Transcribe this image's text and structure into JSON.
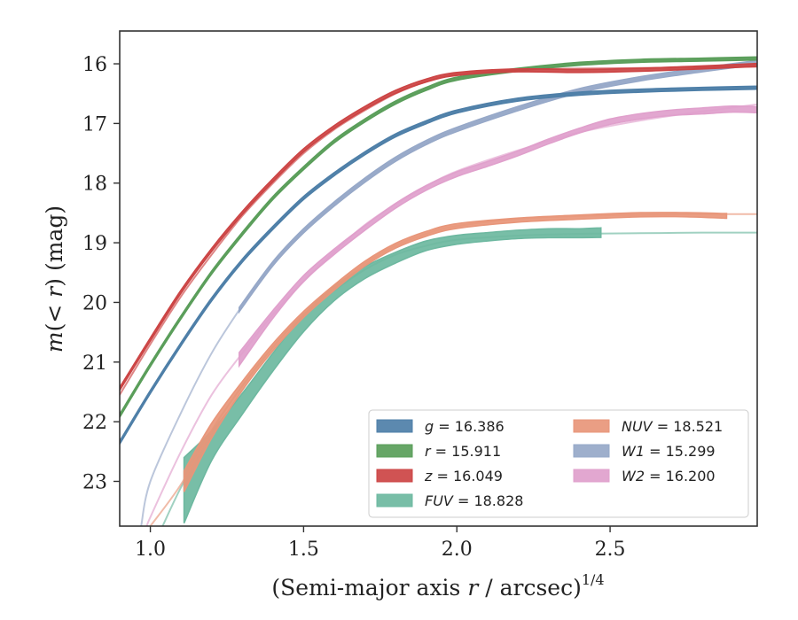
{
  "chart_data": {
    "type": "line",
    "xlabel": "(Semi-major axis r / arcsec)",
    "xlabel_parts": {
      "pre": "(Semi-major axis ",
      "var": "r",
      "post": " / arcsec)",
      "sup": "1/4"
    },
    "ylabel": "m(< r) (mag)",
    "ylabel_parts": {
      "var": "m",
      "open": "(",
      "lt": "< ",
      "r": "r",
      "close": ") (mag)"
    },
    "xlim": [
      0.9,
      2.98
    ],
    "ylim": [
      23.75,
      15.45
    ],
    "y_inverted": true,
    "grid": false,
    "xticks": [
      1.0,
      1.5,
      2.0,
      2.5
    ],
    "xtick_labels": [
      "1.0",
      "1.5",
      "2.0",
      "2.5"
    ],
    "yticks": [
      16,
      17,
      18,
      19,
      20,
      21,
      22,
      23
    ],
    "ytick_labels": [
      "16",
      "17",
      "18",
      "19",
      "20",
      "21",
      "22",
      "23"
    ],
    "legend_position": "lower-right",
    "series": [
      {
        "key": "g",
        "name": "g = 16.386",
        "var": "g",
        "value": "16.386",
        "color": "#4e7fa8",
        "model": {
          "x": [
            0.9,
            1.0,
            1.1,
            1.2,
            1.3,
            1.4,
            1.5,
            1.6,
            1.7,
            1.8,
            1.9,
            2.0,
            2.2,
            2.4,
            2.6,
            2.8,
            2.98
          ],
          "y": [
            22.35,
            21.5,
            20.7,
            19.95,
            19.3,
            18.75,
            18.25,
            17.85,
            17.5,
            17.2,
            16.98,
            16.8,
            16.6,
            16.5,
            16.45,
            16.42,
            16.4
          ]
        },
        "band": {
          "x": [
            0.9,
            1.0,
            1.1,
            1.2,
            1.3,
            1.4,
            1.5,
            1.6,
            1.7,
            1.8,
            1.9,
            2.0,
            2.2,
            2.4,
            2.6,
            2.8,
            2.98
          ],
          "y": [
            22.35,
            21.5,
            20.7,
            19.95,
            19.3,
            18.75,
            18.25,
            17.85,
            17.5,
            17.2,
            16.98,
            16.8,
            16.6,
            16.5,
            16.45,
            16.42,
            16.4
          ],
          "width": 0.05
        }
      },
      {
        "key": "r",
        "name": "r = 15.911",
        "var": "r",
        "value": "15.911",
        "color": "#5a9e5a",
        "model": {
          "x": [
            0.9,
            1.0,
            1.1,
            1.2,
            1.3,
            1.4,
            1.5,
            1.6,
            1.7,
            1.8,
            1.9,
            2.0,
            2.2,
            2.4,
            2.6,
            2.8,
            2.98
          ],
          "y": [
            21.9,
            21.05,
            20.25,
            19.5,
            18.85,
            18.25,
            17.75,
            17.3,
            16.95,
            16.65,
            16.42,
            16.25,
            16.1,
            16.0,
            15.95,
            15.93,
            15.91
          ]
        },
        "band": {
          "x": [
            0.9,
            1.0,
            1.1,
            1.2,
            1.3,
            1.4,
            1.5,
            1.6,
            1.7,
            1.8,
            1.9,
            2.0,
            2.2,
            2.4,
            2.6,
            2.8,
            2.98
          ],
          "y": [
            21.9,
            21.05,
            20.25,
            19.5,
            18.85,
            18.25,
            17.75,
            17.3,
            16.95,
            16.65,
            16.42,
            16.25,
            16.1,
            16.0,
            15.95,
            15.93,
            15.91
          ],
          "width": 0.05
        }
      },
      {
        "key": "z",
        "name": "z = 16.049",
        "var": "z",
        "value": "16.049",
        "color": "#cc4444",
        "model": {
          "x": [
            0.9,
            1.0,
            1.1,
            1.2,
            1.3,
            1.4,
            1.5,
            1.6,
            1.7,
            1.8,
            1.9,
            2.0,
            2.2,
            2.4,
            2.6,
            2.8,
            2.98
          ],
          "y": [
            21.55,
            20.7,
            19.9,
            19.2,
            18.55,
            18.0,
            17.5,
            17.1,
            16.78,
            16.5,
            16.3,
            16.18,
            16.1,
            16.08,
            16.07,
            16.06,
            16.05
          ]
        },
        "band": {
          "x": [
            0.9,
            1.0,
            1.1,
            1.2,
            1.3,
            1.4,
            1.5,
            1.6,
            1.7,
            1.8,
            1.9,
            2.0,
            2.2,
            2.4,
            2.6,
            2.8,
            2.98
          ],
          "y": [
            21.45,
            20.62,
            19.82,
            19.12,
            18.5,
            17.95,
            17.45,
            17.06,
            16.74,
            16.47,
            16.28,
            16.17,
            16.11,
            16.12,
            16.1,
            16.06,
            16.02
          ],
          "width": 0.05
        }
      },
      {
        "key": "FUV",
        "name": "FUV = 18.828",
        "var": "FUV",
        "value": "18.828",
        "color": "#6db8a0",
        "model": {
          "x": [
            1.04,
            1.1,
            1.2,
            1.3,
            1.4,
            1.5,
            1.6,
            1.7,
            1.8,
            1.9,
            2.0,
            2.2,
            2.4,
            2.6,
            2.8,
            2.98
          ],
          "y": [
            23.75,
            23.1,
            22.15,
            21.4,
            20.75,
            20.2,
            19.8,
            19.45,
            19.2,
            19.05,
            18.95,
            18.88,
            18.85,
            18.84,
            18.83,
            18.83
          ]
        },
        "band": {
          "x": [
            1.11,
            1.2,
            1.3,
            1.4,
            1.5,
            1.6,
            1.7,
            1.8,
            1.9,
            2.0,
            2.1,
            2.2,
            2.3,
            2.4,
            2.47
          ],
          "y": [
            23.15,
            22.4,
            21.7,
            21.0,
            20.35,
            19.85,
            19.5,
            19.25,
            19.05,
            18.95,
            18.9,
            18.86,
            18.84,
            18.84,
            18.83
          ],
          "width": [
            1.1,
            0.5,
            0.35,
            0.3,
            0.28,
            0.24,
            0.2,
            0.18,
            0.16,
            0.15,
            0.14,
            0.14,
            0.15,
            0.15,
            0.16
          ]
        }
      },
      {
        "key": "NUV",
        "name": "NUV = 18.521",
        "var": "NUV",
        "value": "18.521",
        "color": "#e8967a",
        "model": {
          "x": [
            1.0,
            1.1,
            1.2,
            1.3,
            1.4,
            1.5,
            1.6,
            1.7,
            1.8,
            1.9,
            2.0,
            2.2,
            2.4,
            2.6,
            2.8,
            2.98
          ],
          "y": [
            23.75,
            23.05,
            22.15,
            21.4,
            20.75,
            20.2,
            19.75,
            19.35,
            19.05,
            18.85,
            18.72,
            18.6,
            18.55,
            18.53,
            18.52,
            18.52
          ]
        },
        "band": {
          "x": [
            1.11,
            1.2,
            1.3,
            1.4,
            1.5,
            1.6,
            1.7,
            1.8,
            1.9,
            2.0,
            2.2,
            2.4,
            2.6,
            2.75,
            2.88
          ],
          "y": [
            23.0,
            22.15,
            21.4,
            20.75,
            20.2,
            19.75,
            19.35,
            19.05,
            18.85,
            18.72,
            18.62,
            18.57,
            18.53,
            18.53,
            18.55
          ],
          "width": [
            0.35,
            0.25,
            0.15,
            0.12,
            0.1,
            0.09,
            0.08,
            0.08,
            0.08,
            0.08,
            0.07,
            0.07,
            0.07,
            0.07,
            0.08
          ]
        }
      },
      {
        "key": "W1",
        "name": "W1 = 15.299",
        "var": "W1",
        "value": "15.299",
        "color": "#96a8c8",
        "model": {
          "x": [
            0.97,
            1.0,
            1.1,
            1.2,
            1.3,
            1.4,
            1.5,
            1.6,
            1.7,
            1.8,
            1.9,
            2.0,
            2.2,
            2.4,
            2.6,
            2.8,
            2.98
          ],
          "y": [
            23.75,
            23.0,
            21.85,
            20.85,
            20.05,
            19.35,
            18.8,
            18.35,
            17.95,
            17.6,
            17.32,
            17.1,
            16.75,
            16.45,
            16.25,
            16.1,
            15.98
          ]
        },
        "band": {
          "x": [
            1.29,
            1.4,
            1.5,
            1.6,
            1.7,
            1.8,
            1.9,
            2.0,
            2.2,
            2.4,
            2.6,
            2.8,
            2.98
          ],
          "y": [
            20.12,
            19.35,
            18.8,
            18.35,
            17.95,
            17.6,
            17.32,
            17.1,
            16.75,
            16.45,
            16.25,
            16.1,
            15.98
          ],
          "width": 0.07
        }
      },
      {
        "key": "W2",
        "name": "W2 = 16.200",
        "var": "W2",
        "value": "16.200",
        "color": "#e0a0cc",
        "model": {
          "x": [
            0.99,
            1.0,
            1.1,
            1.2,
            1.3,
            1.4,
            1.5,
            1.6,
            1.7,
            1.8,
            1.9,
            2.0,
            2.2,
            2.4,
            2.6,
            2.8,
            2.98
          ],
          "y": [
            23.75,
            23.6,
            22.5,
            21.55,
            20.85,
            20.2,
            19.65,
            19.15,
            18.7,
            18.35,
            18.05,
            17.8,
            17.45,
            17.15,
            16.95,
            16.8,
            16.68
          ]
        },
        "band": {
          "x": [
            1.29,
            1.4,
            1.5,
            1.6,
            1.7,
            1.8,
            1.9,
            2.0,
            2.1,
            2.2,
            2.3,
            2.4,
            2.5,
            2.6,
            2.7,
            2.8,
            2.9,
            2.98
          ],
          "y": [
            20.95,
            20.2,
            19.6,
            19.15,
            18.75,
            18.38,
            18.08,
            17.85,
            17.68,
            17.5,
            17.3,
            17.12,
            16.97,
            16.88,
            16.82,
            16.79,
            16.76,
            16.77
          ],
          "width": [
            0.22,
            0.13,
            0.1,
            0.09,
            0.08,
            0.08,
            0.08,
            0.08,
            0.08,
            0.08,
            0.08,
            0.08,
            0.09,
            0.09,
            0.09,
            0.1,
            0.1,
            0.1
          ]
        }
      }
    ]
  }
}
